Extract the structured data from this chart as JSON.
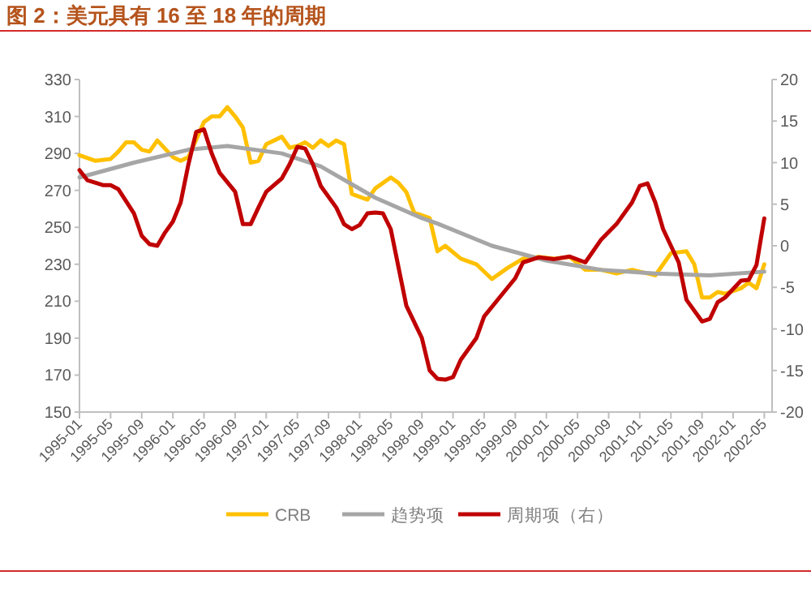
{
  "chart_data": {
    "type": "line",
    "title": "图 2：美元具有 16 至 18 年的周期",
    "xlim": [
      "1995-01",
      "2002-06"
    ],
    "xticks": [
      "1995-01",
      "1995-05",
      "1995-09",
      "1996-01",
      "1996-05",
      "1996-09",
      "1997-01",
      "1997-05",
      "1997-09",
      "1998-01",
      "1998-05",
      "1998-09",
      "1999-01",
      "1999-05",
      "1999-09",
      "2000-01",
      "2000-05",
      "2000-09",
      "2001-01",
      "2001-05",
      "2001-09",
      "2002-01",
      "2002-05"
    ],
    "ylim": [
      150,
      330
    ],
    "yticks": [
      150,
      170,
      190,
      210,
      230,
      250,
      270,
      290,
      310,
      330
    ],
    "y2lim": [
      -20,
      20
    ],
    "y2ticks": [
      -20,
      -15,
      -10,
      -5,
      0,
      5,
      10,
      15,
      20
    ],
    "grid": false,
    "legend": "bottom",
    "line_style": "solid",
    "series": [
      {
        "name": "CRB",
        "color": "#ffc000",
        "x": [
          "1995-01",
          "1995-03",
          "1995-05",
          "1995-06",
          "1995-07",
          "1995-08",
          "1995-09",
          "1995-10",
          "1995-11",
          "1996-01",
          "1996-02",
          "1996-03",
          "1996-05",
          "1996-06",
          "1996-07",
          "1996-08",
          "1996-09",
          "1996-10",
          "1996-11",
          "1996-12",
          "1997-01",
          "1997-03",
          "1997-04",
          "1997-05",
          "1997-06",
          "1997-07",
          "1997-08",
          "1997-09",
          "1997-10",
          "1997-11",
          "1997-12",
          "1998-02",
          "1998-03",
          "1998-05",
          "1998-06",
          "1998-07",
          "1998-08",
          "1998-10",
          "1998-11",
          "1998-12",
          "1999-02",
          "1999-04",
          "1999-06",
          "1999-08",
          "1999-10",
          "1999-12",
          "2000-02",
          "2000-04",
          "2000-06",
          "2000-08",
          "2000-10",
          "2000-12",
          "2001-03",
          "2001-05",
          "2001-07",
          "2001-08",
          "2001-09",
          "2001-10",
          "2001-11",
          "2001-12",
          "2002-02",
          "2002-03",
          "2002-04",
          "2002-05"
        ],
        "values": [
          289,
          286,
          287,
          291,
          296,
          296,
          292,
          291,
          297,
          288,
          286,
          288,
          307,
          310,
          310,
          315,
          310,
          304,
          285,
          286,
          295,
          299,
          293,
          294,
          296,
          293,
          297,
          294,
          297,
          295,
          268,
          265,
          271,
          277,
          274,
          269,
          258,
          255,
          237,
          240,
          233,
          230,
          222,
          228,
          233,
          234,
          233,
          234,
          227,
          227,
          225,
          227,
          224,
          236,
          237,
          230,
          212,
          212,
          215,
          214,
          217,
          220,
          217,
          230
        ]
      },
      {
        "name": "趋势项",
        "color": "#a6a6a6",
        "x": [
          "1995-01",
          "1995-08",
          "1996-03",
          "1996-08",
          "1997-03",
          "1997-08",
          "1998-03",
          "1998-09",
          "1998-11",
          "1999-06",
          "2000-01",
          "2000-08",
          "2001-03",
          "2001-10",
          "2002-05"
        ],
        "values": [
          277,
          285,
          292,
          294,
          290,
          283,
          266,
          255,
          252,
          240,
          232,
          227,
          225,
          224,
          226
        ]
      },
      {
        "name": "周期项（右）",
        "color": "#c00000",
        "axis": "y2",
        "x": [
          "1995-01",
          "1995-02",
          "1995-04",
          "1995-05",
          "1995-06",
          "1995-08",
          "1995-09",
          "1995-10",
          "1995-11",
          "1995-12",
          "1996-01",
          "1996-02",
          "1996-03",
          "1996-04",
          "1996-05",
          "1996-06",
          "1996-07",
          "1996-09",
          "1996-10",
          "1996-11",
          "1996-12",
          "1997-01",
          "1997-03",
          "1997-04",
          "1997-05",
          "1997-06",
          "1997-07",
          "1997-08",
          "1997-10",
          "1997-11",
          "1997-12",
          "1998-01",
          "1998-02",
          "1998-03",
          "1998-04",
          "1998-05",
          "1998-06",
          "1998-07",
          "1998-09",
          "1998-10",
          "1998-11",
          "1998-12",
          "1999-01",
          "1999-02",
          "1999-04",
          "1999-05",
          "1999-07",
          "1999-09",
          "1999-10",
          "1999-12",
          "2000-02",
          "2000-04",
          "2000-06",
          "2000-08",
          "2000-10",
          "2000-12",
          "2001-01",
          "2001-02",
          "2001-03",
          "2001-04",
          "2001-06",
          "2001-07",
          "2001-09",
          "2001-10",
          "2001-11",
          "2001-12",
          "2002-02",
          "2002-03",
          "2002-04",
          "2002-05"
        ],
        "values": [
          9.1,
          7.9,
          7.3,
          7.3,
          6.8,
          3.9,
          1.2,
          0.2,
          0,
          1.6,
          2.9,
          5.2,
          9.8,
          13.7,
          14,
          11.1,
          8.8,
          6.5,
          2.6,
          2.6,
          4.6,
          6.5,
          8.1,
          9.8,
          11.9,
          11.7,
          9.8,
          7.2,
          4.6,
          2.6,
          2,
          2.5,
          3.9,
          4,
          3.9,
          2,
          -2.6,
          -7.2,
          -11.1,
          -15,
          -16,
          -16.1,
          -15.8,
          -13.7,
          -11.1,
          -8.5,
          -6.2,
          -3.9,
          -2,
          -1.4,
          -1.6,
          -1.3,
          -2,
          0.7,
          2.6,
          5.2,
          7.2,
          7.5,
          5.2,
          2,
          -2,
          -6.5,
          -9.1,
          -8.8,
          -6.8,
          -6.2,
          -4.2,
          -4.1,
          -2.3,
          3.3
        ]
      }
    ]
  }
}
